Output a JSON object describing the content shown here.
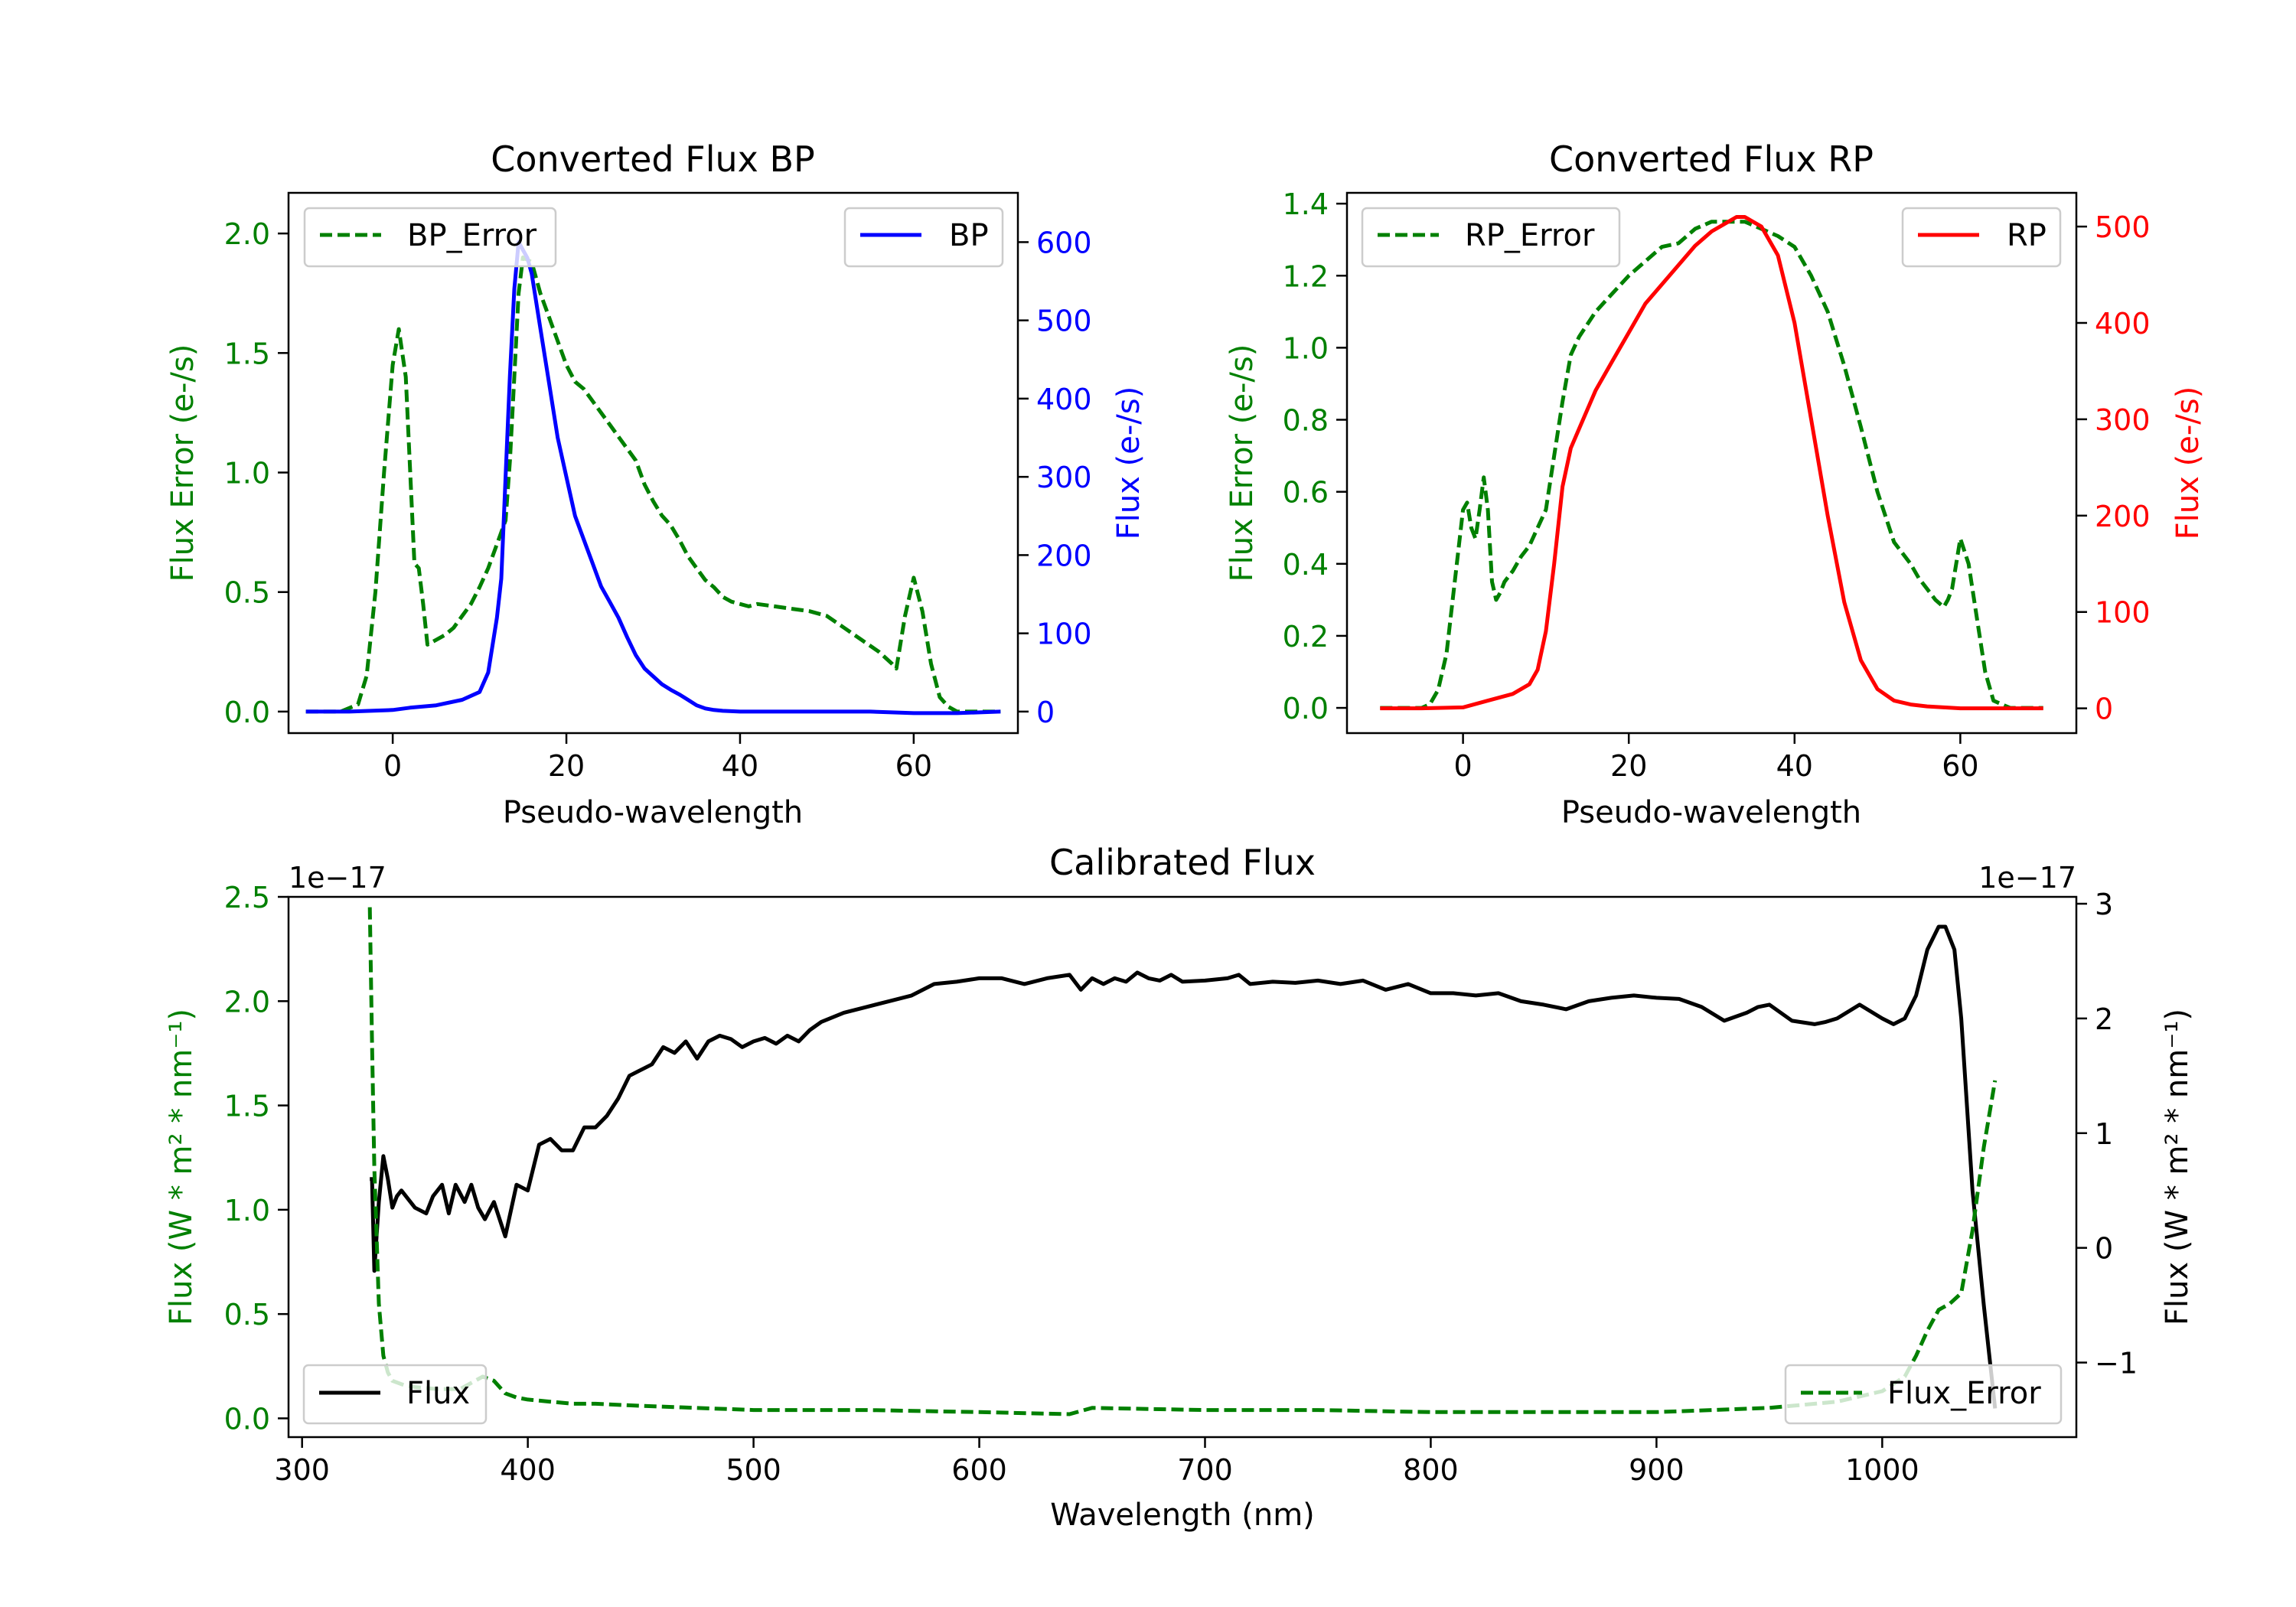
{
  "colors": {
    "bp": "#0000ff",
    "rp": "#ff0000",
    "error": "#008000",
    "flux": "#000000",
    "axis": "#000000"
  },
  "chart_data": [
    {
      "id": "bp",
      "type": "line",
      "title": "Converted Flux BP",
      "xlabel": "Pseudo-wavelength",
      "ylabel_left": "Flux Error (e-/s)",
      "ylabel_right": "Flux (e-/s)",
      "xlim": [
        -12,
        72
      ],
      "ylim_left": [
        -0.09,
        2.17
      ],
      "ylim_right": [
        -27.5,
        663
      ],
      "xticks": [
        0,
        20,
        40,
        60
      ],
      "xtick_labels": [
        "0",
        "20",
        "40",
        "60"
      ],
      "yticks_left": [
        0.0,
        0.5,
        1.0,
        1.5,
        2.0
      ],
      "ytick_labels_left": [
        "0.0",
        "0.5",
        "1.0",
        "1.5",
        "2.0"
      ],
      "yticks_right": [
        0,
        100,
        200,
        300,
        400,
        500,
        600
      ],
      "ytick_labels_right": [
        "0",
        "100",
        "200",
        "300",
        "400",
        "500",
        "600"
      ],
      "series": [
        {
          "name": "BP_Error",
          "axis": "left",
          "style": "dashed",
          "x": [
            -10,
            -6,
            -4,
            -3,
            -2,
            -1,
            0,
            0.7,
            1.5,
            2.5,
            3,
            3.5,
            4,
            5,
            6,
            7,
            8,
            9,
            10,
            11,
            12,
            13,
            13.5,
            14,
            14.5,
            15,
            16,
            17,
            18,
            19,
            20,
            21,
            22,
            23,
            24,
            25,
            26,
            27,
            28,
            29,
            30,
            31,
            32,
            33,
            34,
            35,
            36,
            37,
            38,
            39,
            40,
            41,
            42,
            44,
            46,
            48,
            50,
            52,
            54,
            56,
            57.5,
            58,
            59,
            60,
            61,
            62,
            63,
            64,
            65,
            67,
            70
          ],
          "y": [
            0.0,
            0.0,
            0.03,
            0.15,
            0.5,
            1.0,
            1.45,
            1.6,
            1.4,
            0.62,
            0.6,
            0.45,
            0.28,
            0.3,
            0.32,
            0.35,
            0.4,
            0.45,
            0.52,
            0.6,
            0.7,
            0.8,
            1.05,
            1.4,
            1.75,
            1.9,
            1.88,
            1.75,
            1.65,
            1.55,
            1.45,
            1.38,
            1.35,
            1.3,
            1.25,
            1.2,
            1.15,
            1.1,
            1.05,
            0.95,
            0.88,
            0.82,
            0.78,
            0.72,
            0.65,
            0.6,
            0.55,
            0.52,
            0.48,
            0.46,
            0.45,
            0.44,
            0.45,
            0.44,
            0.43,
            0.42,
            0.4,
            0.35,
            0.3,
            0.25,
            0.2,
            0.18,
            0.4,
            0.56,
            0.42,
            0.2,
            0.06,
            0.02,
            0.0,
            0.0,
            0.0
          ]
        },
        {
          "name": "BP",
          "axis": "right",
          "style": "solid",
          "x": [
            -10,
            -5,
            0,
            2,
            5,
            8,
            10,
            11,
            12,
            12.5,
            13,
            13.5,
            14,
            14.5,
            15,
            15.5,
            16,
            17,
            18,
            19,
            20,
            21,
            22,
            23,
            24,
            25,
            26,
            27,
            28,
            29,
            30,
            31,
            32,
            33,
            34,
            35,
            36,
            37,
            38,
            40,
            45,
            50,
            55,
            60,
            65,
            70
          ],
          "y": [
            0,
            0,
            2,
            5,
            8,
            15,
            25,
            50,
            120,
            170,
            300,
            430,
            540,
            600,
            590,
            580,
            560,
            490,
            420,
            350,
            300,
            250,
            220,
            190,
            160,
            140,
            120,
            95,
            72,
            55,
            45,
            35,
            28,
            22,
            15,
            8,
            4,
            2,
            1,
            0,
            0,
            0,
            0,
            -2,
            -2,
            0
          ]
        }
      ]
    },
    {
      "id": "rp",
      "type": "line",
      "title": "Converted Flux RP",
      "xlabel": "Pseudo-wavelength",
      "ylabel_left": "Flux Error (e-/s)",
      "ylabel_right": "Flux (e-/s)",
      "xlim": [
        -14,
        74
      ],
      "ylim_left": [
        -0.07,
        1.43
      ],
      "ylim_right": [
        -25.7,
        535
      ],
      "xticks": [
        0,
        20,
        40,
        60
      ],
      "xtick_labels": [
        "0",
        "20",
        "40",
        "60"
      ],
      "yticks_left": [
        0.0,
        0.2,
        0.4,
        0.6,
        0.8,
        1.0,
        1.2,
        1.4
      ],
      "ytick_labels_left": [
        "0.0",
        "0.2",
        "0.4",
        "0.6",
        "0.8",
        "1.0",
        "1.2",
        "1.4"
      ],
      "yticks_right": [
        0,
        100,
        200,
        300,
        400,
        500
      ],
      "ytick_labels_right": [
        "0",
        "100",
        "200",
        "300",
        "400",
        "500"
      ],
      "series": [
        {
          "name": "RP_Error",
          "axis": "left",
          "style": "dashed",
          "x": [
            -10,
            -5,
            -4,
            -3,
            -2,
            -1,
            0,
            0.5,
            1,
            1.5,
            2,
            2.5,
            3,
            3.5,
            4,
            4.5,
            5,
            6,
            7,
            8,
            9,
            10,
            11,
            12,
            13,
            14,
            16,
            18,
            20,
            22,
            24,
            26,
            28,
            30,
            32,
            34,
            36,
            38,
            40,
            42,
            44,
            46,
            48,
            50,
            52,
            54,
            55,
            56,
            57,
            58,
            58.5,
            59,
            60,
            61,
            62,
            63,
            64,
            66,
            70
          ],
          "y": [
            0.0,
            0.0,
            0.01,
            0.05,
            0.15,
            0.35,
            0.55,
            0.57,
            0.5,
            0.47,
            0.55,
            0.64,
            0.55,
            0.35,
            0.3,
            0.32,
            0.35,
            0.38,
            0.42,
            0.45,
            0.5,
            0.55,
            0.7,
            0.85,
            0.98,
            1.03,
            1.1,
            1.15,
            1.2,
            1.24,
            1.28,
            1.29,
            1.33,
            1.35,
            1.35,
            1.35,
            1.33,
            1.31,
            1.28,
            1.2,
            1.1,
            0.95,
            0.78,
            0.6,
            0.46,
            0.4,
            0.36,
            0.33,
            0.3,
            0.28,
            0.3,
            0.33,
            0.47,
            0.4,
            0.25,
            0.1,
            0.02,
            0.0,
            0.0
          ]
        },
        {
          "name": "RP",
          "axis": "right",
          "style": "solid",
          "x": [
            -10,
            -5,
            0,
            3,
            6,
            8,
            9,
            10,
            11,
            12,
            13,
            14,
            16,
            18,
            20,
            22,
            24,
            26,
            28,
            30,
            32,
            33,
            34,
            35,
            36,
            38,
            40,
            42,
            44,
            46,
            48,
            50,
            52,
            54,
            56,
            58,
            60,
            62,
            64,
            66,
            70
          ],
          "y": [
            0,
            0,
            1,
            8,
            15,
            25,
            40,
            80,
            150,
            230,
            270,
            290,
            330,
            360,
            390,
            420,
            440,
            460,
            480,
            495,
            505,
            510,
            510,
            505,
            500,
            470,
            400,
            300,
            200,
            110,
            50,
            20,
            8,
            4,
            2,
            1,
            0,
            0,
            0,
            0,
            0
          ]
        }
      ]
    },
    {
      "id": "calibrated",
      "type": "line",
      "title": "Calibrated Flux",
      "xlabel": "Wavelength (nm)",
      "ylabel_left": "Flux (W * m² * nm⁻¹)",
      "ylabel_right": "Flux (W * m² * nm⁻¹)",
      "offset_left": "1e−17",
      "offset_right": "1e−17",
      "xlim": [
        294,
        1086
      ],
      "ylim_left": [
        -0.09,
        2.5
      ],
      "ylim_right": [
        -1.65,
        3.06
      ],
      "xticks": [
        300,
        400,
        500,
        600,
        700,
        800,
        900,
        1000
      ],
      "xtick_labels": [
        "300",
        "400",
        "500",
        "600",
        "700",
        "800",
        "900",
        "1000"
      ],
      "yticks_left": [
        0.0,
        0.5,
        1.0,
        1.5,
        2.0,
        2.5
      ],
      "ytick_labels_left": [
        "0.0",
        "0.5",
        "1.0",
        "1.5",
        "2.0",
        "2.5"
      ],
      "yticks_right": [
        -1,
        0,
        1,
        2,
        3
      ],
      "ytick_labels_right": [
        "−1",
        "0",
        "1",
        "2",
        "3"
      ],
      "series": [
        {
          "name": "Flux",
          "axis": "right",
          "style": "solid",
          "x": [
            330,
            331,
            332,
            334,
            336,
            338,
            340,
            342,
            344,
            346,
            350,
            355,
            358,
            362,
            365,
            368,
            372,
            375,
            378,
            381,
            385,
            390,
            395,
            400,
            405,
            410,
            415,
            420,
            425,
            430,
            435,
            440,
            445,
            450,
            455,
            460,
            465,
            470,
            475,
            480,
            485,
            490,
            495,
            500,
            505,
            510,
            515,
            520,
            525,
            530,
            540,
            550,
            560,
            570,
            580,
            590,
            600,
            610,
            620,
            630,
            640,
            645,
            650,
            655,
            660,
            665,
            670,
            675,
            680,
            685,
            690,
            700,
            710,
            715,
            720,
            730,
            740,
            750,
            760,
            770,
            780,
            790,
            800,
            810,
            820,
            830,
            840,
            850,
            860,
            870,
            880,
            890,
            900,
            910,
            920,
            930,
            940,
            945,
            950,
            960,
            970,
            975,
            980,
            990,
            1000,
            1005,
            1010,
            1015,
            1020,
            1025,
            1028,
            1030,
            1032,
            1035,
            1040,
            1045,
            1050
          ],
          "y": [
            0.6,
            0.6,
            -0.2,
            0.4,
            0.8,
            0.6,
            0.35,
            0.45,
            0.5,
            0.45,
            0.35,
            0.3,
            0.45,
            0.55,
            0.3,
            0.55,
            0.4,
            0.55,
            0.35,
            0.25,
            0.4,
            0.1,
            0.55,
            0.5,
            0.9,
            0.95,
            0.85,
            0.85,
            1.05,
            1.05,
            1.15,
            1.3,
            1.5,
            1.55,
            1.6,
            1.75,
            1.7,
            1.8,
            1.65,
            1.8,
            1.85,
            1.82,
            1.75,
            1.8,
            1.83,
            1.78,
            1.85,
            1.8,
            1.9,
            1.97,
            2.05,
            2.1,
            2.15,
            2.2,
            2.3,
            2.32,
            2.35,
            2.35,
            2.3,
            2.35,
            2.38,
            2.25,
            2.35,
            2.3,
            2.35,
            2.32,
            2.4,
            2.35,
            2.33,
            2.38,
            2.32,
            2.33,
            2.35,
            2.38,
            2.3,
            2.32,
            2.31,
            2.33,
            2.3,
            2.33,
            2.25,
            2.3,
            2.22,
            2.22,
            2.2,
            2.22,
            2.15,
            2.12,
            2.08,
            2.15,
            2.18,
            2.2,
            2.18,
            2.17,
            2.1,
            1.98,
            2.05,
            2.1,
            2.12,
            1.98,
            1.95,
            1.97,
            2.0,
            2.12,
            2.0,
            1.95,
            2.0,
            2.2,
            2.6,
            2.8,
            2.8,
            2.7,
            2.6,
            2.0,
            0.5,
            -0.5,
            -1.4
          ]
        },
        {
          "name": "Flux_Error",
          "axis": "left",
          "style": "dashed",
          "x": [
            330,
            331,
            332,
            334,
            336,
            338,
            340,
            345,
            350,
            360,
            370,
            380,
            385,
            390,
            395,
            400,
            410,
            420,
            430,
            450,
            500,
            550,
            600,
            640,
            650,
            700,
            750,
            800,
            850,
            900,
            950,
            980,
            1000,
            1010,
            1015,
            1020,
            1025,
            1030,
            1035,
            1040,
            1045,
            1050
          ],
          "y": [
            2.45,
            1.8,
            1.2,
            0.55,
            0.3,
            0.22,
            0.18,
            0.16,
            0.15,
            0.14,
            0.14,
            0.2,
            0.18,
            0.12,
            0.1,
            0.09,
            0.08,
            0.07,
            0.07,
            0.06,
            0.04,
            0.04,
            0.03,
            0.02,
            0.05,
            0.04,
            0.04,
            0.03,
            0.03,
            0.03,
            0.05,
            0.08,
            0.13,
            0.2,
            0.3,
            0.42,
            0.52,
            0.55,
            0.6,
            0.9,
            1.3,
            1.62
          ]
        }
      ]
    }
  ]
}
